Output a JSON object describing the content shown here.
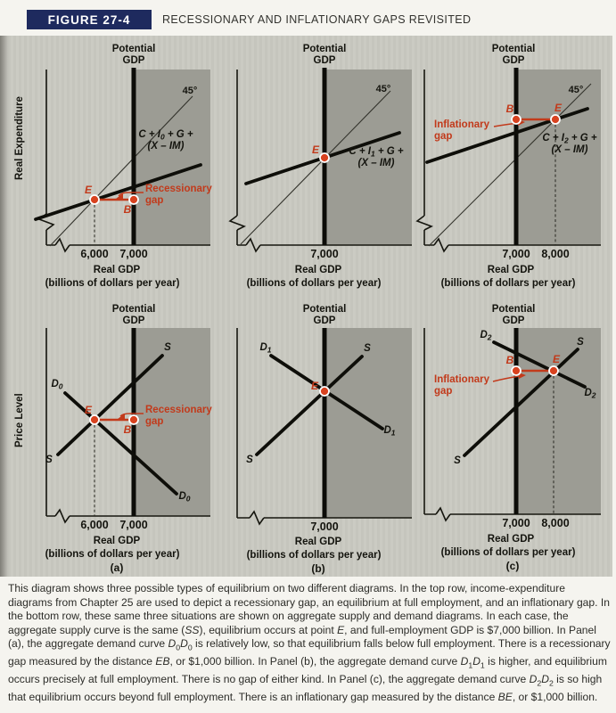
{
  "header": {
    "figure_label": "FIGURE 27-4",
    "title": "RECESSIONARY AND INFLATIONARY GAPS REVISITED"
  },
  "colors": {
    "navy": "#1e2a5e",
    "figure_bg": "#cbcbc3",
    "beyond_potential_bg": "#9c9c94",
    "accent_red": "#c23a1b"
  },
  "common": {
    "potential1": "Potential",
    "potential2": "GDP",
    "deg45": "45°",
    "x_title1": "Real GDP",
    "x_title2": "(billions of dollars per year)",
    "y_top": "Real Expenditure",
    "y_bottom": "Price Level"
  },
  "panels": {
    "top_a": {
      "ticks": [
        "6,000",
        "7,000"
      ],
      "exp_prefix": "C + I",
      "exp_sub": "0",
      "exp_suffix": " + G +",
      "exp_line2": "(X – IM)",
      "gap_line1": "Recessionary",
      "gap_line2": "gap",
      "pE": "E",
      "pB": "B"
    },
    "top_b": {
      "ticks": [
        "7,000"
      ],
      "exp_prefix": "C + I",
      "exp_sub": "1",
      "exp_suffix": " + G +",
      "exp_line2": "(X – IM)",
      "pE": "E"
    },
    "top_c": {
      "ticks": [
        "7,000",
        "8,000"
      ],
      "exp_prefix": "C + I",
      "exp_sub": "2",
      "exp_suffix": " + G +",
      "exp_line2": "(X – IM)",
      "gap_line1": "Inflationary",
      "gap_line2": "gap",
      "pE": "E",
      "pB": "B"
    },
    "bottom_a": {
      "ticks": [
        "6,000",
        "7,000"
      ],
      "s": "S",
      "d": "D",
      "d_sub": "0",
      "letter": "(a)",
      "gap_line1": "Recessionary",
      "gap_line2": "gap",
      "pE": "E",
      "pB": "B"
    },
    "bottom_b": {
      "ticks": [
        "7,000"
      ],
      "s": "S",
      "d": "D",
      "d_sub": "1",
      "letter": "(b)",
      "pE": "E"
    },
    "bottom_c": {
      "ticks": [
        "7,000",
        "8,000"
      ],
      "s": "S",
      "d": "D",
      "d_sub": "2",
      "letter": "(c)",
      "gap_line1": "Inflationary",
      "gap_line2": "gap",
      "pE": "E",
      "pB": "B"
    }
  },
  "caption": {
    "segments": [
      {
        "t": "This diagram shows three possible types of equilibrium on two different diagrams. In the top row, income-expenditure diagrams from Chapter 25 are used to depict a recessionary gap, an equilibrium at full employment, and an inflationary gap. In the bottom row, these same three situations are shown on aggregate supply and demand diagrams. In each case, the aggregate supply curve is the same (",
        "s": ""
      },
      {
        "t": "SS",
        "s": "i"
      },
      {
        "t": "), equilibrium occurs at point ",
        "s": ""
      },
      {
        "t": "E",
        "s": "i"
      },
      {
        "t": ", and full-employment GDP is $7,000 billion. In Panel (a), the aggregate demand curve ",
        "s": ""
      },
      {
        "t": "D",
        "s": "i"
      },
      {
        "t": "0",
        "s": "sub"
      },
      {
        "t": "D",
        "s": "i"
      },
      {
        "t": "0",
        "s": "sub"
      },
      {
        "t": " is relatively low, so that equilibrium falls below full employment. There is a recessionary gap measured by the distance ",
        "s": ""
      },
      {
        "t": "EB",
        "s": "i"
      },
      {
        "t": ", or $1,000 billion. In Panel (b), the aggregate demand curve ",
        "s": ""
      },
      {
        "t": "D",
        "s": "i"
      },
      {
        "t": "1",
        "s": "sub"
      },
      {
        "t": "D",
        "s": "i"
      },
      {
        "t": "1",
        "s": "sub"
      },
      {
        "t": " is higher, and equilibrium occurs precisely at full employment. There is no gap of either kind. In Panel (c), the aggregate demand curve ",
        "s": ""
      },
      {
        "t": "D",
        "s": "i"
      },
      {
        "t": "2",
        "s": "sub"
      },
      {
        "t": "D",
        "s": "i"
      },
      {
        "t": "2",
        "s": "sub"
      },
      {
        "t": " is so high that equilibrium occurs beyond full employment. There is an inflationary gap measured by the distance ",
        "s": ""
      },
      {
        "t": "BE",
        "s": "i"
      },
      {
        "t": ", or $1,000 billion.",
        "s": ""
      }
    ]
  }
}
